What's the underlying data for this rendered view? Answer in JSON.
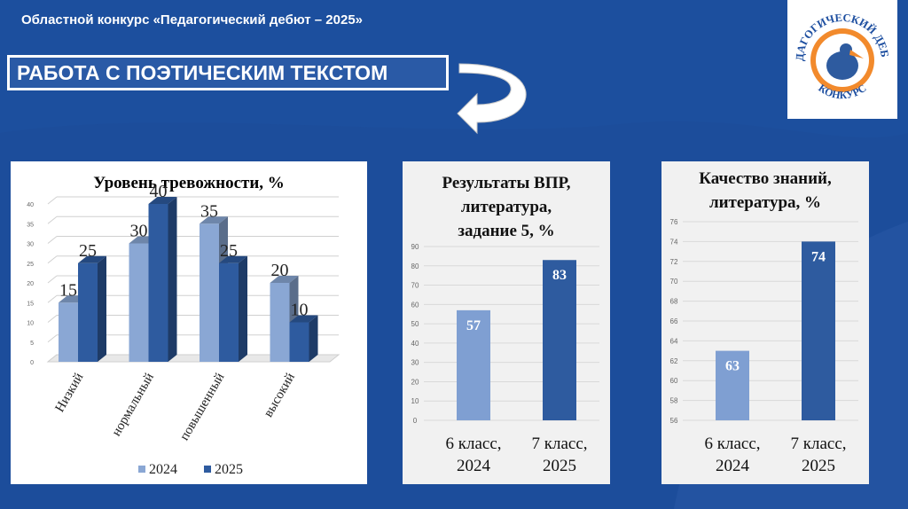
{
  "header": {
    "title": "Областной конкурс «Педагогический дебют – 2025»"
  },
  "banner": {
    "text": "РАБОТА С ПОЭТИЧЕСКИМ ТЕКСТОМ"
  },
  "logo": {
    "top_text": "ПЕДАГОГИЧЕСКИЙ ДЕБЮТ",
    "bottom_text": "КОНКУРС"
  },
  "colors": {
    "background": "#1c4f9e",
    "light_bar": "#7f9fd2",
    "dark_bar": "#2e5b9f"
  },
  "chart_data": [
    {
      "type": "bar",
      "title": "Уровень тревожности, %",
      "categories": [
        "Низкий",
        "нормальный",
        "повышенный",
        "высокий"
      ],
      "series": [
        {
          "name": "2024",
          "values": [
            15,
            30,
            35,
            20
          ],
          "color": "#8aa7d4"
        },
        {
          "name": "2025",
          "values": [
            25,
            40,
            25,
            10
          ],
          "color": "#2e5b9f"
        }
      ],
      "ylim": [
        0,
        40
      ],
      "yticks": [
        0,
        5,
        10,
        15,
        20,
        25,
        30,
        35,
        40
      ],
      "legend": "bottom",
      "grid": true
    },
    {
      "type": "bar",
      "title": "Результаты ВПР, литература, задание 5, %",
      "title_lines": [
        "Результаты ВПР,",
        "литература,",
        "задание 5, %"
      ],
      "categories": [
        "6 класс, 2024",
        "7 класс, 2025"
      ],
      "category_lines": [
        [
          "6 класс,",
          "2024"
        ],
        [
          "7 класс,",
          "2025"
        ]
      ],
      "values": [
        57,
        83
      ],
      "colors": [
        "#7f9fd2",
        "#2e5b9f"
      ],
      "ylim": [
        0,
        90
      ],
      "yticks": [
        0,
        10,
        20,
        30,
        40,
        50,
        60,
        70,
        80,
        90
      ],
      "grid": true
    },
    {
      "type": "bar",
      "title": "Качество знаний, литература, %",
      "title_lines": [
        "Качество знаний,",
        "литература, %"
      ],
      "categories": [
        "6 класс, 2024",
        "7 класс, 2025"
      ],
      "category_lines": [
        [
          "6 класс,",
          "2024"
        ],
        [
          "7 класс,",
          "2025"
        ]
      ],
      "values": [
        63,
        74
      ],
      "colors": [
        "#7f9fd2",
        "#2e5b9f"
      ],
      "ylim": [
        56,
        76
      ],
      "yticks": [
        56,
        58,
        60,
        62,
        64,
        66,
        68,
        70,
        72,
        74,
        76
      ],
      "grid": true
    }
  ]
}
